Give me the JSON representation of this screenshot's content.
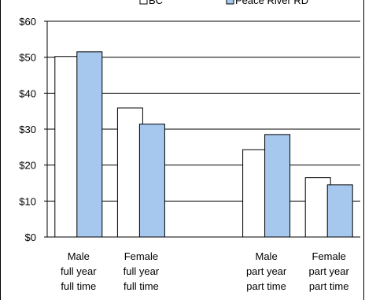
{
  "chart_data": {
    "type": "bar",
    "title": "",
    "xlabel": "",
    "ylabel": "",
    "ylim": [
      0,
      60
    ],
    "y_ticks": [
      "$0",
      "$10",
      "$20",
      "$30",
      "$40",
      "$50",
      "$60"
    ],
    "y_tick_values": [
      0,
      10,
      20,
      30,
      40,
      50,
      60
    ],
    "grid": true,
    "legend_position": "top",
    "categories": [
      [
        "Male",
        "full year",
        "full time"
      ],
      [
        "Female",
        "full year",
        "full time"
      ],
      [
        "",
        "",
        ""
      ],
      [
        "Male",
        "part year",
        "part time"
      ],
      [
        "Female",
        "part year",
        "part time"
      ]
    ],
    "series": [
      {
        "name": "BC",
        "color": "#ffffff",
        "values": [
          50.2,
          35.9,
          null,
          24.3,
          16.5
        ]
      },
      {
        "name": "Peace River RD",
        "color": "#a6c8ee",
        "values": [
          51.5,
          31.4,
          null,
          28.5,
          14.5
        ]
      }
    ]
  }
}
